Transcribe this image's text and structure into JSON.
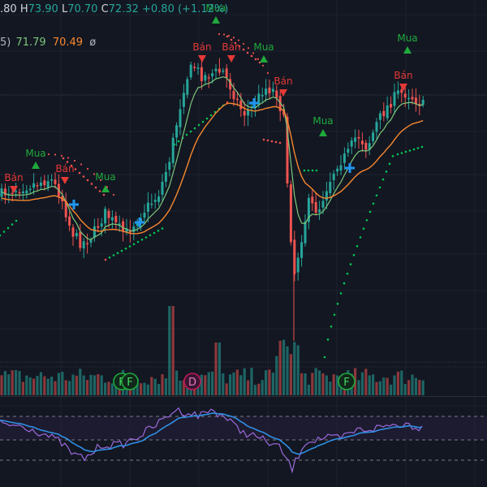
{
  "header": {
    "open_fragment": ".80",
    "high_prefix": "H",
    "high": "73.90",
    "low_prefix": "L",
    "low": "70.70",
    "close_prefix": "C",
    "close": "72.32",
    "change": "+0.80 (+1.12%)"
  },
  "indicator_legend": {
    "paren": "5)",
    "ma_fast": "71.79",
    "ma_slow": "70.49",
    "symbol": "ø"
  },
  "signals": {
    "buy_label": "Mua",
    "sell_label": "Bán"
  },
  "events": {
    "financials_label": "F",
    "dividend_label": "D"
  },
  "colors": {
    "background": "#131722",
    "candle_up": "#26a69a",
    "candle_down": "#ef5350",
    "ma_fast": "#7cc77a",
    "ma_slow": "#f7882f",
    "sar": "#00c853",
    "buy_signal": "#1faa3c",
    "sell_signal": "#e53935",
    "cross_marker": "#2196f3",
    "oscillator_fast": "#9c6ade",
    "oscillator_slow": "#2f8fe3"
  }
}
